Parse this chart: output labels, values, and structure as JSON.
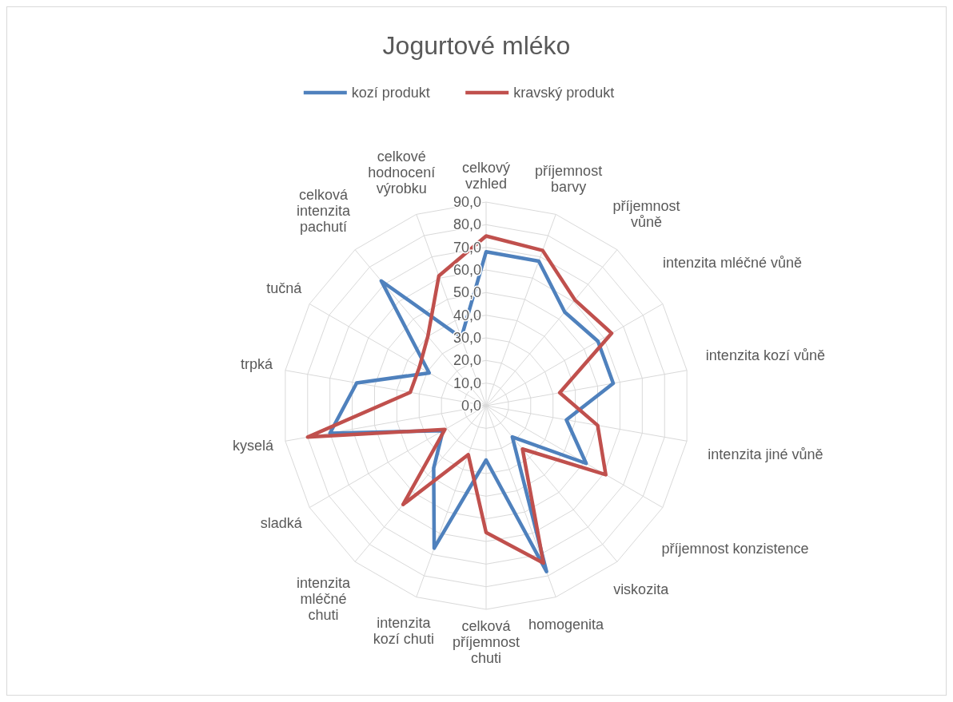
{
  "chart_data": {
    "type": "radar",
    "title": "Jogurtové mléko",
    "categories": [
      "celkový vzhled",
      "příjemnost barvy",
      "příjemnost vůně",
      "intenzita mléčné vůně",
      "intenzita kozí vůně",
      "intenzita jiné vůně",
      "příjemnost konzistence",
      "viskozita",
      "homogenita",
      "celková příjemnost chuti",
      "intenzita kozí chuti",
      "intenzita mléčné chuti",
      "sladká",
      "kyselá",
      "trpká",
      "tučná",
      "celková intenzita pachutí",
      "celkové hodnocení výrobku"
    ],
    "series": [
      {
        "name": "kozí produkt",
        "color": "#4f81bd",
        "values": [
          68,
          68,
          54,
          57,
          57,
          36,
          51,
          18,
          78,
          24,
          67,
          36,
          22,
          70,
          58,
          29,
          72,
          32
        ]
      },
      {
        "name": "kravský produkt",
        "color": "#c0504d",
        "values": [
          75,
          73,
          61,
          64,
          33,
          50,
          61,
          25,
          74,
          56,
          23,
          57,
          21,
          80,
          34,
          34,
          40,
          61
        ]
      }
    ],
    "ylim": [
      0,
      90
    ],
    "yticks": [
      {
        "value": 0,
        "label": "0,0"
      },
      {
        "value": 10,
        "label": "10,0"
      },
      {
        "value": 20,
        "label": "20,0"
      },
      {
        "value": 30,
        "label": "30,0"
      },
      {
        "value": 40,
        "label": "40,0"
      },
      {
        "value": 50,
        "label": "50,0"
      },
      {
        "value": 60,
        "label": "60,0"
      },
      {
        "value": 70,
        "label": "70,0"
      },
      {
        "value": 80,
        "label": "80,0"
      },
      {
        "value": 90,
        "label": "90,0"
      }
    ],
    "grid": true,
    "legend": "top"
  }
}
